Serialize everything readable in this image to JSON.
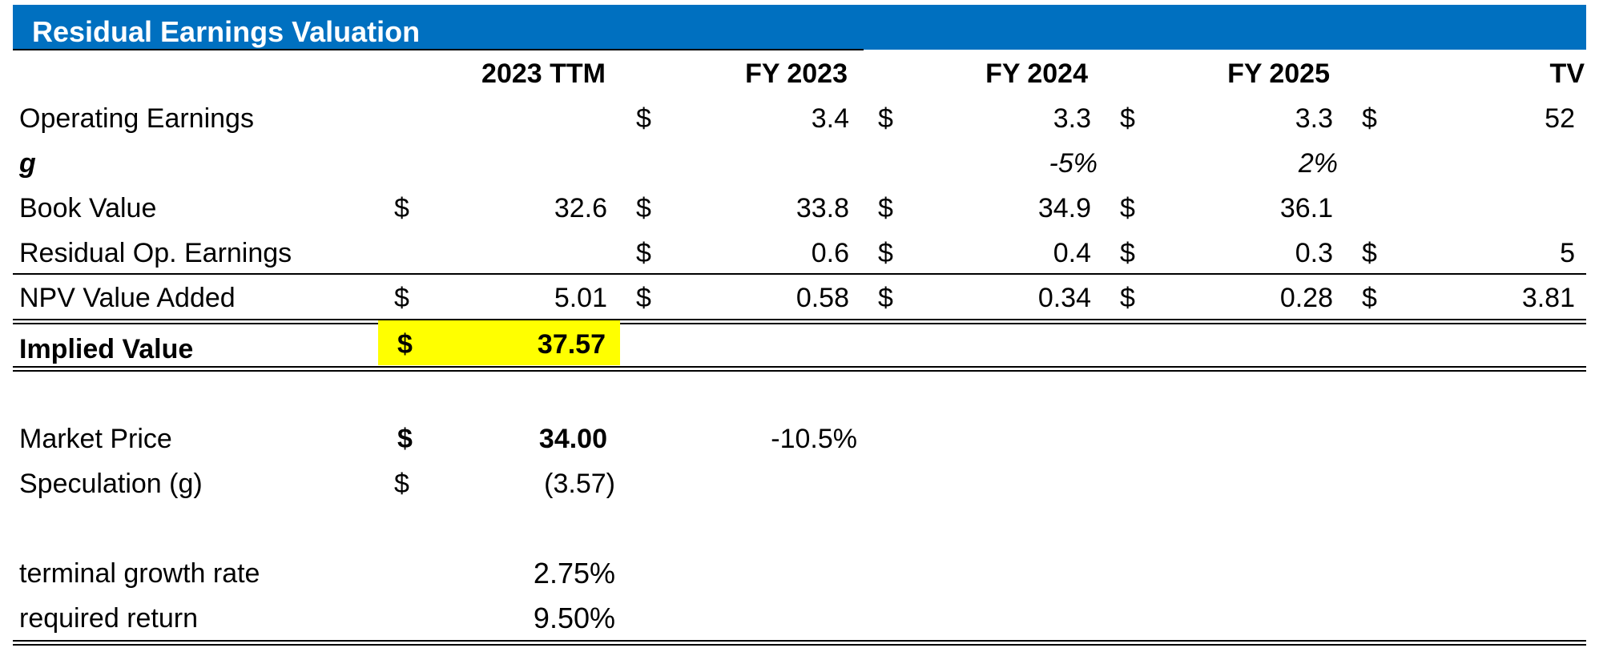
{
  "title": "Residual Earnings Valuation",
  "headers": [
    "2023 TTM",
    "FY 2023",
    "FY 2024",
    "FY 2025",
    "TV"
  ],
  "rows": {
    "operating_earnings": {
      "label": "Operating Earnings",
      "ttm_cur": "",
      "ttm": "",
      "fy2023_cur": "$",
      "fy2023": "3.4",
      "fy2024_cur": "$",
      "fy2024": "3.3",
      "fy2025_cur": "$",
      "fy2025": "3.3",
      "tv_cur": "$",
      "tv": "52"
    },
    "g": {
      "label": "g",
      "fy2024": "-5%",
      "fy2025": "2%"
    },
    "book_value": {
      "label": "Book Value",
      "ttm_cur": "$",
      "ttm": "32.6",
      "fy2023_cur": "$",
      "fy2023": "33.8",
      "fy2024_cur": "$",
      "fy2024": "34.9",
      "fy2025_cur": "$",
      "fy2025": "36.1"
    },
    "residual_op": {
      "label": "Residual Op. Earnings",
      "fy2023_cur": "$",
      "fy2023": "0.6",
      "fy2024_cur": "$",
      "fy2024": "0.4",
      "fy2025_cur": "$",
      "fy2025": "0.3",
      "tv_cur": "$",
      "tv": "5"
    },
    "npv": {
      "label": "NPV Value Added",
      "ttm_cur": "$",
      "ttm": "5.01",
      "fy2023_cur": "$",
      "fy2023": "0.58",
      "fy2024_cur": "$",
      "fy2024": "0.34",
      "fy2025_cur": "$",
      "fy2025": "0.28",
      "tv_cur": "$",
      "tv": "3.81"
    },
    "implied": {
      "label": "Implied Value",
      "ttm_cur": "$",
      "ttm": "37.57"
    },
    "market_price": {
      "label": "Market Price",
      "ttm_cur": "$",
      "ttm": "34.00",
      "fy2023": "-10.5%"
    },
    "speculation": {
      "label": "Speculation (g)",
      "ttm_cur": "$",
      "ttm": "(3.57)"
    },
    "terminal_growth": {
      "label": "terminal growth rate",
      "value": "2.75%"
    },
    "required_return": {
      "label": "required return",
      "value": "9.50%"
    }
  },
  "colors": {
    "title_bar": "#0070c0",
    "highlight": "#ffff00"
  }
}
